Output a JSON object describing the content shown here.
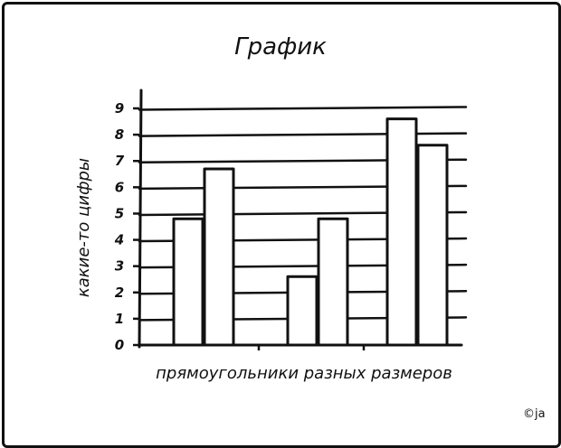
{
  "chart_data": {
    "type": "bar",
    "title": "График",
    "xlabel": "прямоугольники разных размеров",
    "ylabel": "какие-то цифры",
    "ylim": [
      0,
      9
    ],
    "yticks": [
      "0",
      "1",
      "2",
      "3",
      "4",
      "5",
      "6",
      "7",
      "8",
      "9"
    ],
    "grid": true,
    "groups": [
      {
        "values": [
          4.8,
          6.7
        ]
      },
      {
        "values": [
          2.6,
          4.8
        ]
      },
      {
        "values": [
          8.6,
          7.6
        ]
      }
    ]
  },
  "credit": "©ja"
}
